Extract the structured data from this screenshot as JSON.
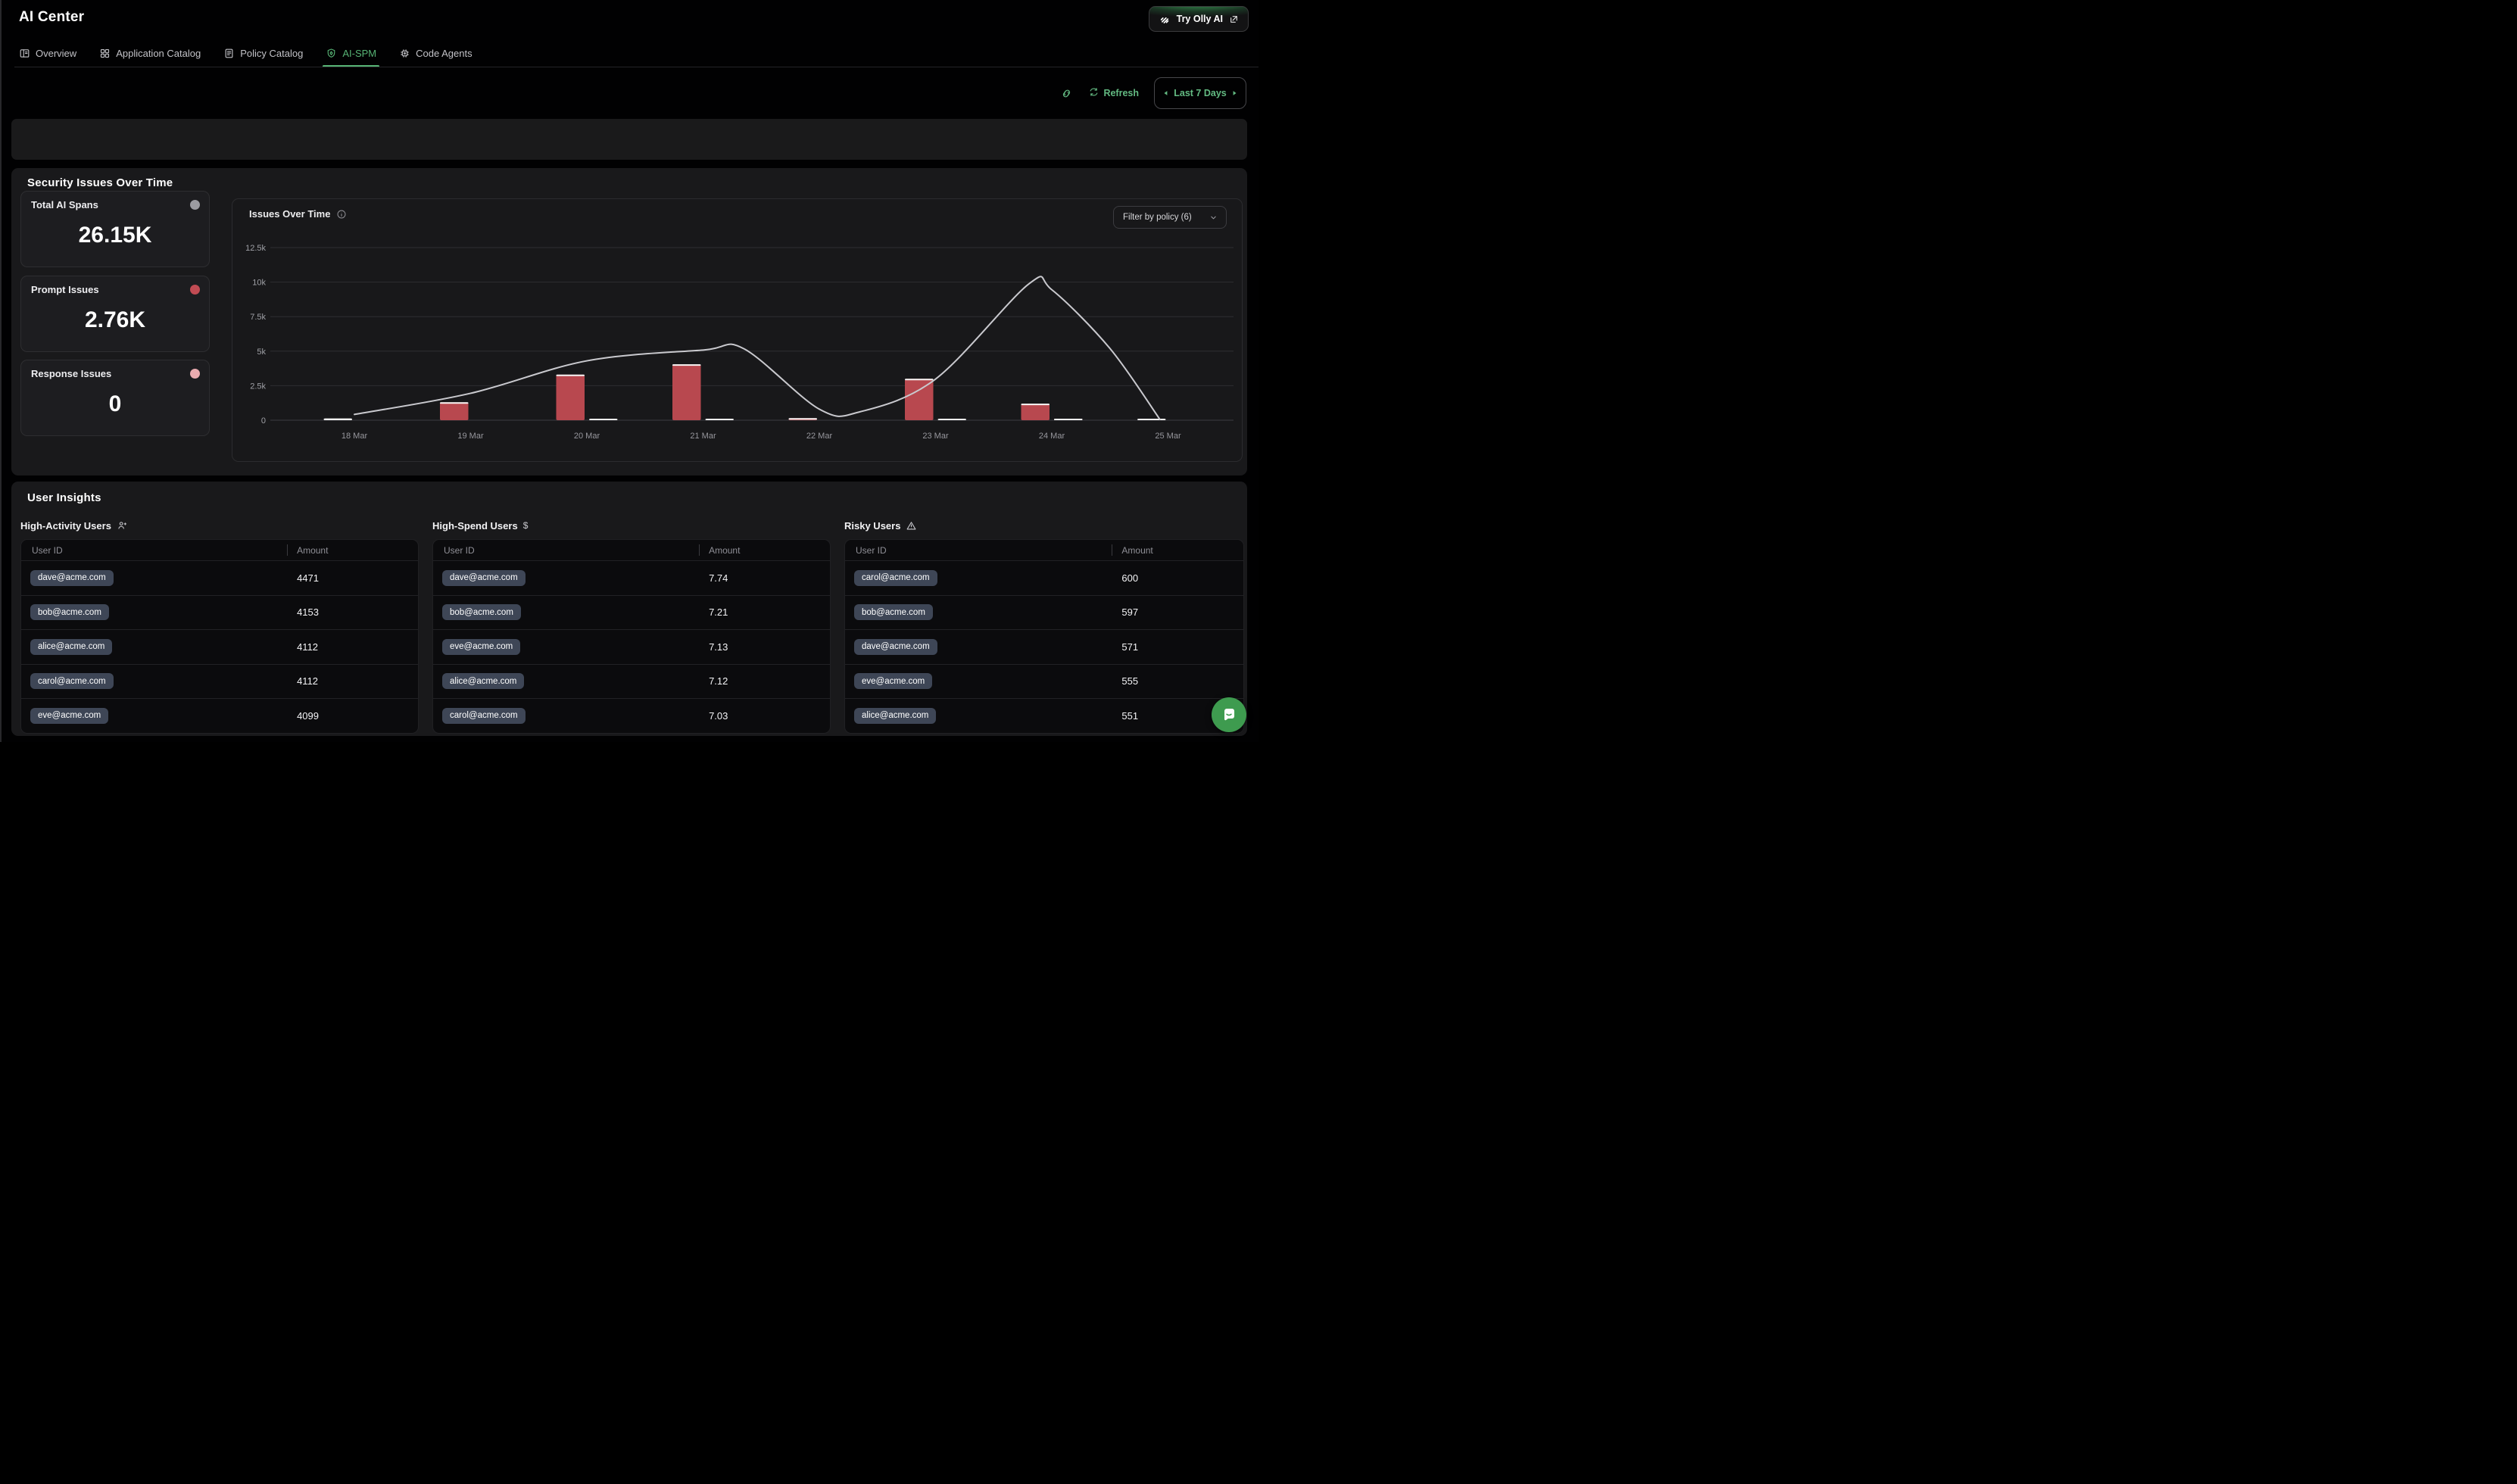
{
  "header": {
    "title": "AI Center",
    "cta_label": "Try Olly AI"
  },
  "tabs": [
    {
      "id": "overview",
      "label": "Overview",
      "active": false
    },
    {
      "id": "application-catalog",
      "label": "Application Catalog",
      "active": false
    },
    {
      "id": "policy-catalog",
      "label": "Policy Catalog",
      "active": false
    },
    {
      "id": "ai-spm",
      "label": "AI-SPM",
      "active": true
    },
    {
      "id": "code-agents",
      "label": "Code Agents",
      "active": false
    }
  ],
  "toolbar": {
    "refresh_label": "Refresh",
    "range_label": "Last 7 Days"
  },
  "security": {
    "title": "Security Issues Over Time",
    "cards": [
      {
        "label": "Total AI Spans",
        "value": "26.15K",
        "dot_color": "#9b9ba1"
      },
      {
        "label": "Prompt Issues",
        "value": "2.76K",
        "dot_color": "#c14b53"
      },
      {
        "label": "Response Issues",
        "value": "0",
        "dot_color": "#eaacb0"
      }
    ]
  },
  "chart_data": {
    "type": "bar+line combo",
    "title": "Issues Over Time",
    "filter_label": "Filter by policy (6)",
    "categories": [
      "18 Mar",
      "19 Mar",
      "20 Mar",
      "21 Mar",
      "22 Mar",
      "23 Mar",
      "24 Mar",
      "25 Mar"
    ],
    "series": [
      {
        "name": "prompt-issues-bars",
        "type": "bar",
        "color": "#b8484f",
        "values": [
          0,
          1300,
          3300,
          4050,
          150,
          3000,
          1200,
          0
        ]
      },
      {
        "name": "secondary-bars-white",
        "type": "bar",
        "color": "#f2f2f2",
        "values": [
          130,
          0,
          60,
          60,
          0,
          60,
          0,
          60
        ]
      },
      {
        "name": "secondary-bars-pink",
        "type": "bar",
        "color": "#e2a9ad",
        "values": [
          0,
          0,
          0,
          0,
          0,
          0,
          110,
          0
        ]
      },
      {
        "name": "total-trend-line",
        "type": "line",
        "color": "#c9c9ce",
        "points": [
          [
            0,
            420
          ],
          [
            1,
            1950
          ],
          [
            2,
            4300
          ],
          [
            3,
            5080
          ],
          [
            3.35,
            5180
          ],
          [
            4,
            800
          ],
          [
            4.35,
            610
          ],
          [
            5,
            2980
          ],
          [
            5.8,
            9850
          ],
          [
            6,
            9450
          ],
          [
            6.5,
            5200
          ],
          [
            6.93,
            60
          ]
        ]
      }
    ],
    "ylim": [
      0,
      12500
    ],
    "yticks": [
      "0",
      "2.5k",
      "5k",
      "7.5k",
      "10k",
      "12.5k"
    ],
    "grid": "horizontal",
    "legend": "none"
  },
  "insights": {
    "title": "User Insights",
    "tables": [
      {
        "id": "high-activity",
        "title": "High-Activity Users",
        "icon": "user-plus",
        "columns": [
          "User ID",
          "Amount"
        ],
        "rows": [
          [
            "dave@acme.com",
            "4471"
          ],
          [
            "bob@acme.com",
            "4153"
          ],
          [
            "alice@acme.com",
            "4112"
          ],
          [
            "carol@acme.com",
            "4112"
          ],
          [
            "eve@acme.com",
            "4099"
          ]
        ]
      },
      {
        "id": "high-spend",
        "title": "High-Spend Users",
        "icon": "dollar",
        "columns": [
          "User ID",
          "Amount"
        ],
        "rows": [
          [
            "dave@acme.com",
            "7.74"
          ],
          [
            "bob@acme.com",
            "7.21"
          ],
          [
            "eve@acme.com",
            "7.13"
          ],
          [
            "alice@acme.com",
            "7.12"
          ],
          [
            "carol@acme.com",
            "7.03"
          ]
        ]
      },
      {
        "id": "risky",
        "title": "Risky Users",
        "icon": "warning",
        "columns": [
          "User ID",
          "Amount"
        ],
        "rows": [
          [
            "carol@acme.com",
            "600"
          ],
          [
            "bob@acme.com",
            "597"
          ],
          [
            "dave@acme.com",
            "571"
          ],
          [
            "eve@acme.com",
            "555"
          ],
          [
            "alice@acme.com",
            "551"
          ]
        ]
      }
    ]
  },
  "colors": {
    "accent_green": "#57b475",
    "toolbar_green": "#63ba82",
    "bar_red": "#b8484f",
    "chat_green": "#3E9B4F",
    "badge_bg": "#3e4656"
  }
}
